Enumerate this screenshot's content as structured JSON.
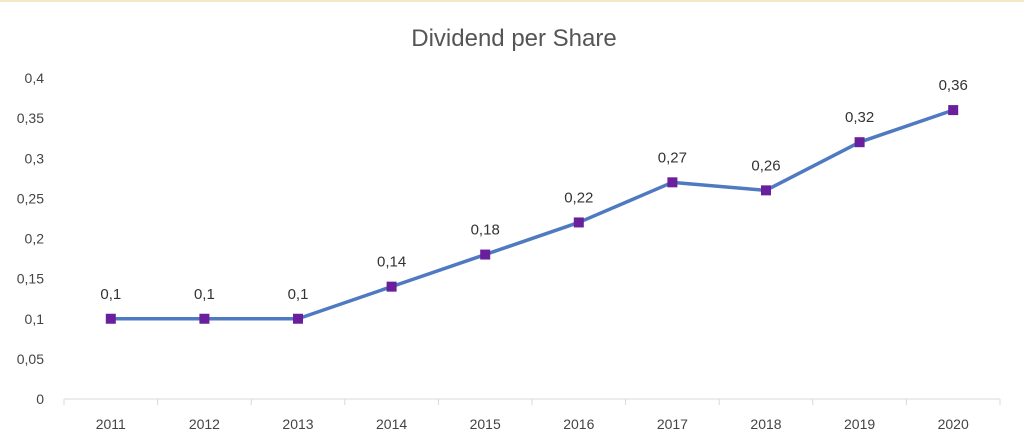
{
  "chart_data": {
    "type": "line",
    "title": "Dividend per Share",
    "xlabel": "",
    "ylabel": "",
    "categories": [
      "2011",
      "2012",
      "2013",
      "2014",
      "2015",
      "2016",
      "2017",
      "2018",
      "2019",
      "2020"
    ],
    "series": [
      {
        "name": "Dividend per Share",
        "values": [
          0.1,
          0.1,
          0.1,
          0.14,
          0.18,
          0.22,
          0.27,
          0.26,
          0.32,
          0.36
        ],
        "data_labels": [
          "0,1",
          "0,1",
          "0,1",
          "0,14",
          "0,18",
          "0,22",
          "0,27",
          "0,26",
          "0,32",
          "0,36"
        ]
      }
    ],
    "ylim": [
      0,
      0.4
    ],
    "yticks": [
      0,
      0.05,
      0.1,
      0.15,
      0.2,
      0.25,
      0.3,
      0.35,
      0.4
    ],
    "ytick_labels": [
      "0",
      "0,05",
      "0,1",
      "0,15",
      "0,2",
      "0,25",
      "0,3",
      "0,35",
      "0,4"
    ],
    "grid": false,
    "legend": "none",
    "colors": {
      "line": "#4f7ac1",
      "marker": "#6a1f9c",
      "text": "#444444",
      "axis": "#d9d9d9"
    }
  }
}
